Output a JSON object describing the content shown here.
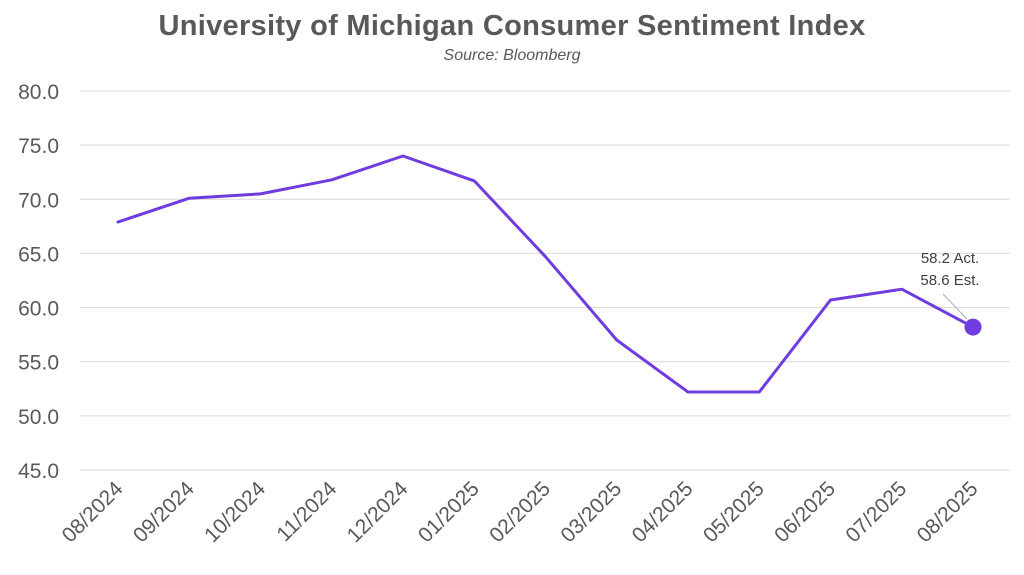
{
  "chart_data": {
    "type": "line",
    "title": "University of Michigan Consumer Sentiment Index",
    "subtitle": "Source: Bloomberg",
    "xlabel": "",
    "ylabel": "",
    "ylim": [
      45,
      80
    ],
    "yticks": [
      "45.0",
      "50.0",
      "55.0",
      "60.0",
      "65.0",
      "70.0",
      "75.0",
      "80.0"
    ],
    "grid": true,
    "categories": [
      "08/2024",
      "09/2024",
      "10/2024",
      "11/2024",
      "12/2024",
      "01/2025",
      "02/2025",
      "03/2025",
      "04/2025",
      "05/2025",
      "06/2025",
      "07/2025",
      "08/2025"
    ],
    "series": [
      {
        "values": [
          67.9,
          70.1,
          70.5,
          71.8,
          74.0,
          71.7,
          64.7,
          57.0,
          52.2,
          52.2,
          60.7,
          61.7,
          58.2
        ],
        "color": "#6f3ce0"
      }
    ],
    "annotations": [
      {
        "category": "08/2025",
        "lines": [
          "58.2 Act.",
          "58.6 Est."
        ]
      }
    ]
  }
}
